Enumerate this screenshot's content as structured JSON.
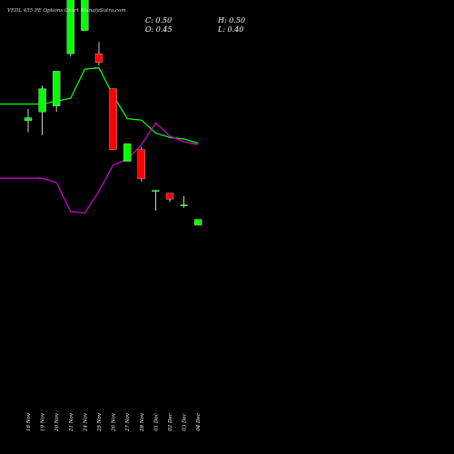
{
  "header": {
    "title": "VEDL 455 PE Options  Chart MunafaSutra.com",
    "close_label": "C: 0.50",
    "open_label": "O: 0.45",
    "high_label": "H: 0.50",
    "low_label": "L: 0.40"
  },
  "colors": {
    "background": "#000000",
    "up": "#00ff00",
    "down": "#ff0000",
    "line_upper": "#00ff00",
    "line_lower": "#cc00cc",
    "text": "#ffffff"
  },
  "chart_data": {
    "type": "candlestick",
    "categories": [
      "18 Nov",
      "19 Nov",
      "20 Nov",
      "21 Nov",
      "24 Nov",
      "25 Nov",
      "26 Nov",
      "27 Nov",
      "28 Nov",
      "01 Dec",
      "02 Dec",
      "03 Dec",
      "04 Dec"
    ],
    "candles": [
      {
        "date": "18 Nov",
        "open": 0.96,
        "high": 1.0,
        "low": 0.92,
        "close": 0.97
      },
      {
        "date": "19 Nov",
        "open": 0.99,
        "high": 1.08,
        "low": 0.91,
        "close": 1.07
      },
      {
        "date": "20 Nov",
        "open": 1.01,
        "high": 1.13,
        "low": 0.99,
        "close": 1.13
      },
      {
        "date": "21 Nov",
        "open": 1.19,
        "high": 1.51,
        "low": 1.18,
        "close": 1.44
      },
      {
        "date": "24 Nov",
        "open": 1.27,
        "high": 1.46,
        "low": 1.27,
        "close": 1.46
      },
      {
        "date": "25 Nov",
        "open": 1.19,
        "high": 1.23,
        "low": 1.15,
        "close": 1.16
      },
      {
        "date": "26 Nov",
        "open": 1.07,
        "high": 1.07,
        "low": 0.86,
        "close": 0.86
      },
      {
        "date": "27 Nov",
        "open": 0.82,
        "high": 0.88,
        "low": 0.82,
        "close": 0.88
      },
      {
        "date": "28 Nov",
        "open": 0.86,
        "high": 0.87,
        "low": 0.75,
        "close": 0.76
      },
      {
        "date": "01 Dec",
        "open": 0.72,
        "high": 0.72,
        "low": 0.65,
        "close": 0.72
      },
      {
        "date": "02 Dec",
        "open": 0.71,
        "high": 0.71,
        "low": 0.68,
        "close": 0.69
      },
      {
        "date": "03 Dec",
        "open": 0.67,
        "high": 0.7,
        "low": 0.66,
        "close": 0.67
      },
      {
        "date": "04 Dec",
        "open": 0.6,
        "high": 0.62,
        "low": 0.6,
        "close": 0.62
      }
    ],
    "lines": [
      {
        "color": "#00ff00",
        "values": [
          0.74,
          0.74,
          0.76,
          0.78,
          0.98,
          0.99,
          0.8,
          0.64,
          0.63,
          0.54,
          0.51,
          0.5,
          0.47
        ]
      },
      {
        "color": "#cc00cc",
        "values": [
          0.23,
          0.23,
          0.2,
          0.0,
          -0.01,
          0.14,
          0.32,
          0.36,
          0.46,
          0.61,
          0.52,
          0.48,
          0.46
        ]
      }
    ]
  }
}
